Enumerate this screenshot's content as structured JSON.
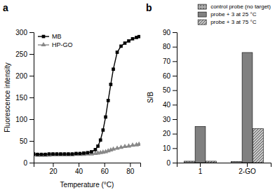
{
  "chart_data": [
    {
      "type": "line",
      "xlabel": "Temperature (°C)",
      "ylabel": "Fluorescence intensity",
      "annotations": [
        "a"
      ],
      "x": [
        5,
        8,
        11,
        14,
        17,
        20,
        23,
        26,
        29,
        32,
        35,
        38,
        41,
        44,
        47,
        50,
        53,
        55,
        57,
        59,
        61,
        63,
        65,
        67,
        70,
        73,
        76,
        79,
        82,
        85,
        87
      ],
      "xlim": [
        5,
        88
      ],
      "ylim": [
        0,
        300
      ],
      "xticks": [
        20,
        40,
        60,
        80
      ],
      "yticks": [
        0,
        50,
        100,
        150,
        200,
        250,
        300
      ],
      "legend": "upper left",
      "grid": false,
      "series": [
        {
          "name": "MB",
          "color": "#000000",
          "marker": "square",
          "values": [
            20,
            19,
            19,
            19,
            20,
            20,
            20,
            20,
            20,
            20,
            20,
            21,
            21,
            22,
            23,
            25,
            30,
            38,
            52,
            75,
            105,
            143,
            180,
            215,
            254,
            268,
            275,
            280,
            285,
            288,
            290
          ]
        },
        {
          "name": "HP-GO",
          "color": "#888888",
          "marker": "triangle",
          "values": [
            18,
            17,
            17,
            17,
            17,
            18,
            18,
            18,
            18,
            18,
            18,
            19,
            19,
            19,
            20,
            20,
            21,
            22,
            23,
            24,
            25,
            27,
            29,
            31,
            33,
            35,
            37,
            38,
            40,
            41,
            42
          ]
        }
      ]
    },
    {
      "type": "bar",
      "ylabel": "S/B",
      "annotations": [
        "b"
      ],
      "categories": [
        "1",
        "2-GO"
      ],
      "ylim": [
        0,
        90
      ],
      "yticks": [
        0,
        10,
        20,
        30,
        40,
        50,
        60,
        70,
        80,
        90
      ],
      "legend": "upper right",
      "grid": false,
      "series": [
        {
          "name": "control probe (no target)",
          "color": "#b0b0b0",
          "values": [
            1.0,
            0.8
          ]
        },
        {
          "name": "probe + 3 at 25 °C",
          "color": "#808080",
          "values": [
            25.0,
            76.0
          ]
        },
        {
          "name": "probe + 3 at 75 °C",
          "color": "#c8c8c8",
          "values": [
            1.0,
            23.5
          ]
        }
      ]
    }
  ]
}
